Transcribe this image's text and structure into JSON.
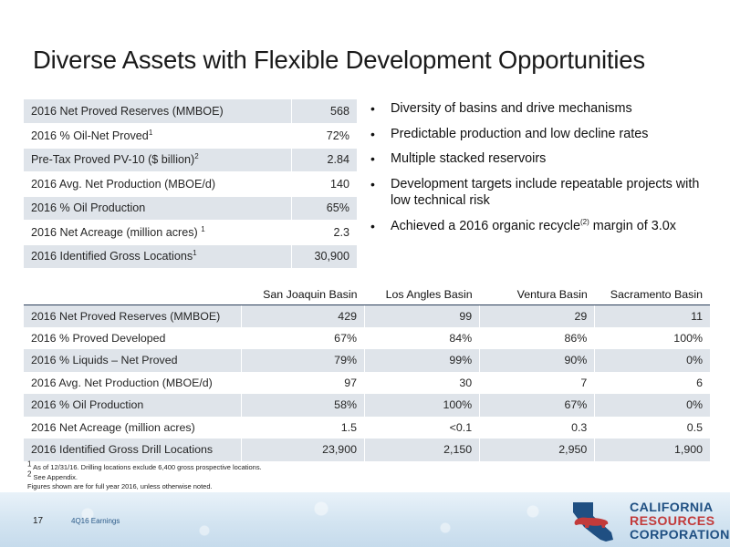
{
  "title": "Diverse Assets with Flexible Development Opportunities",
  "summary_table": [
    {
      "label": "2016 Net Proved Reserves (MMBOE)",
      "sup": "",
      "value": "568"
    },
    {
      "label": "2016 % Oil-Net Proved",
      "sup": "1",
      "value": "72%"
    },
    {
      "label": "Pre-Tax Proved PV-10 ($ billion)",
      "sup": "2",
      "value": "2.84"
    },
    {
      "label": "2016 Avg. Net Production (MBOE/d)",
      "sup": "",
      "value": "140"
    },
    {
      "label": "2016 % Oil Production",
      "sup": "",
      "value": "65%"
    },
    {
      "label": "2016 Net Acreage (million acres) ",
      "sup": "1",
      "value": "2.3"
    },
    {
      "label": "2016 Identified Gross Locations",
      "sup": "1",
      "value": "30,900"
    }
  ],
  "bullets": {
    "b1": "Diversity of basins and drive mechanisms",
    "b2": "Predictable production and low decline rates",
    "b3": "Multiple stacked reservoirs",
    "b4": "Development targets include repeatable projects with low technical risk",
    "b5_pre": "Achieved a 2016 organic recycle",
    "b5_sup": "(2)",
    "b5_post": " margin of 3.0x"
  },
  "basin_table": {
    "headers": [
      "San Joaquin Basin",
      "Los Angles Basin",
      "Ventura Basin",
      "Sacramento Basin"
    ],
    "rows": [
      {
        "label": "2016 Net Proved Reserves (MMBOE)",
        "values": [
          "429",
          "99",
          "29",
          "11"
        ]
      },
      {
        "label": "2016 % Proved Developed",
        "values": [
          "67%",
          "84%",
          "86%",
          "100%"
        ]
      },
      {
        "label": "2016 % Liquids – Net Proved",
        "values": [
          "79%",
          "99%",
          "90%",
          "0%"
        ]
      },
      {
        "label": "2016 Avg. Net Production (MBOE/d)",
        "values": [
          "97",
          "30",
          "7",
          "6"
        ]
      },
      {
        "label": "2016 % Oil Production",
        "values": [
          "58%",
          "100%",
          "67%",
          "0%"
        ]
      },
      {
        "label": "2016  Net Acreage (million acres)",
        "values": [
          "1.5",
          "<0.1",
          "0.3",
          "0.5"
        ]
      },
      {
        "label": "2016 Identified Gross Drill Locations",
        "values": [
          "23,900",
          "2,150",
          "2,950",
          "1,900"
        ]
      }
    ]
  },
  "footnotes": {
    "f1_sup": "1",
    "f1": " As of 12/31/16. Drilling locations exclude 6,400 gross prospective locations.",
    "f2_sup": "2",
    "f2": " See Appendix.",
    "f3": "Figures shown are for full year 2016, unless otherwise noted."
  },
  "footer": {
    "page_number": "17",
    "label": "4Q16 Earnings"
  },
  "logo": {
    "line1": "CALIFORNIA",
    "line2": "RESOURCES",
    "line3": "CORPORATION",
    "colors": {
      "blue": "#1f4f82",
      "red": "#c23b3b"
    }
  }
}
